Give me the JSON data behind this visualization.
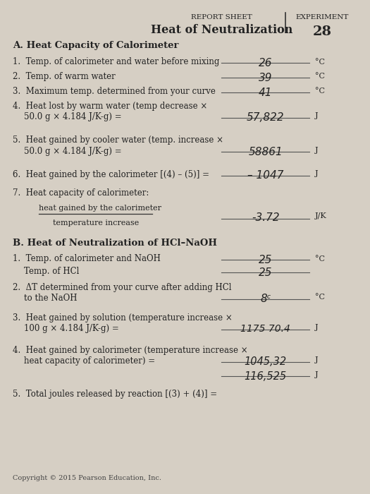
{
  "bg_color": "#d6cfc4",
  "title_left": "Heat of Neutralization",
  "title_right_top": "REPORT SHEET",
  "title_right_label": "EXPERIMENT",
  "title_right_num": "28",
  "section_a_title": "A. Heat Capacity of Calorimeter",
  "section_a_fraction_num": "heat gained by the calorimeter",
  "section_a_fraction_den": "temperature increase",
  "section_a_fraction_ans": "-3.72",
  "section_a_fraction_unit": "J/K",
  "section_b_title": "B. Heat of Neutralization of HCl–NaOH",
  "copyright": "Copyright © 2015 Pearson Education, Inc."
}
